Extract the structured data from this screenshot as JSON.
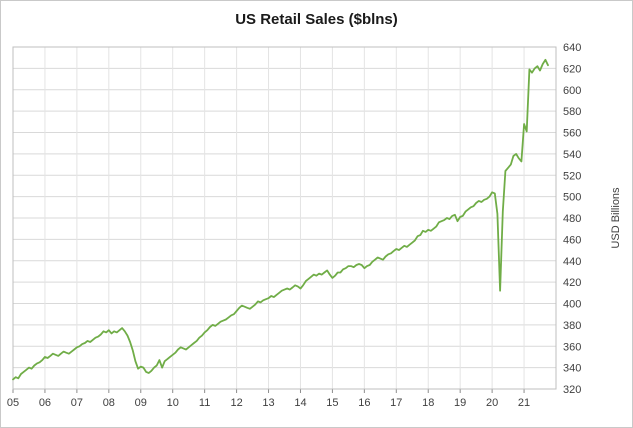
{
  "chart_data": {
    "type": "line",
    "title": "US Retail Sales ($blns)",
    "xlabel": "",
    "ylabel": "USD Billions",
    "ylim": [
      320,
      640
    ],
    "y_step": 20,
    "grid": true,
    "legend": "none",
    "x_tick_labels": [
      "05",
      "06",
      "07",
      "08",
      "09",
      "10",
      "11",
      "12",
      "13",
      "14",
      "15",
      "16",
      "17",
      "18",
      "19",
      "20",
      "21"
    ],
    "x_unit": "months",
    "x_start": "2005-01",
    "x_total_months": 204,
    "series": [
      {
        "name": "US Retail Sales",
        "color": "#70ad47",
        "values": [
          329,
          331,
          330,
          334,
          336,
          338,
          340,
          339,
          342,
          344,
          345,
          347,
          350,
          349,
          351,
          353,
          352,
          351,
          353,
          355,
          354,
          353,
          355,
          357,
          359,
          360,
          362,
          363,
          365,
          364,
          366,
          368,
          369,
          371,
          374,
          373,
          375,
          372,
          374,
          373,
          375,
          377,
          374,
          370,
          364,
          356,
          346,
          339,
          341,
          340,
          336,
          335,
          337,
          340,
          342,
          347,
          340,
          346,
          348,
          350,
          352,
          354,
          357,
          359,
          358,
          357,
          359,
          361,
          363,
          365,
          368,
          370,
          373,
          375,
          378,
          380,
          379,
          381,
          383,
          384,
          385,
          387,
          389,
          390,
          393,
          396,
          398,
          397,
          396,
          395,
          397,
          399,
          402,
          401,
          403,
          404,
          405,
          407,
          406,
          408,
          410,
          412,
          413,
          414,
          413,
          415,
          417,
          416,
          414,
          417,
          421,
          423,
          425,
          427,
          426,
          428,
          427,
          429,
          431,
          427,
          424,
          426,
          429,
          429,
          432,
          433,
          435,
          435,
          434,
          436,
          437,
          436,
          433,
          435,
          436,
          439,
          441,
          443,
          442,
          441,
          444,
          446,
          447,
          449,
          451,
          450,
          452,
          454,
          453,
          455,
          457,
          459,
          463,
          464,
          468,
          467,
          469,
          468,
          470,
          472,
          476,
          477,
          478,
          480,
          479,
          482,
          483,
          477,
          481,
          482,
          486,
          488,
          490,
          491,
          494,
          496,
          495,
          497,
          498,
          500,
          504,
          503,
          484,
          412,
          486,
          524,
          527,
          530,
          538,
          540,
          536,
          533,
          568,
          561,
          619,
          616,
          620,
          622,
          618,
          624,
          628,
          623
        ]
      }
    ],
    "axis_label_color": "#404040",
    "gridline_color": "#d9d9d9",
    "plot_border_color": "#bfbfbf"
  }
}
